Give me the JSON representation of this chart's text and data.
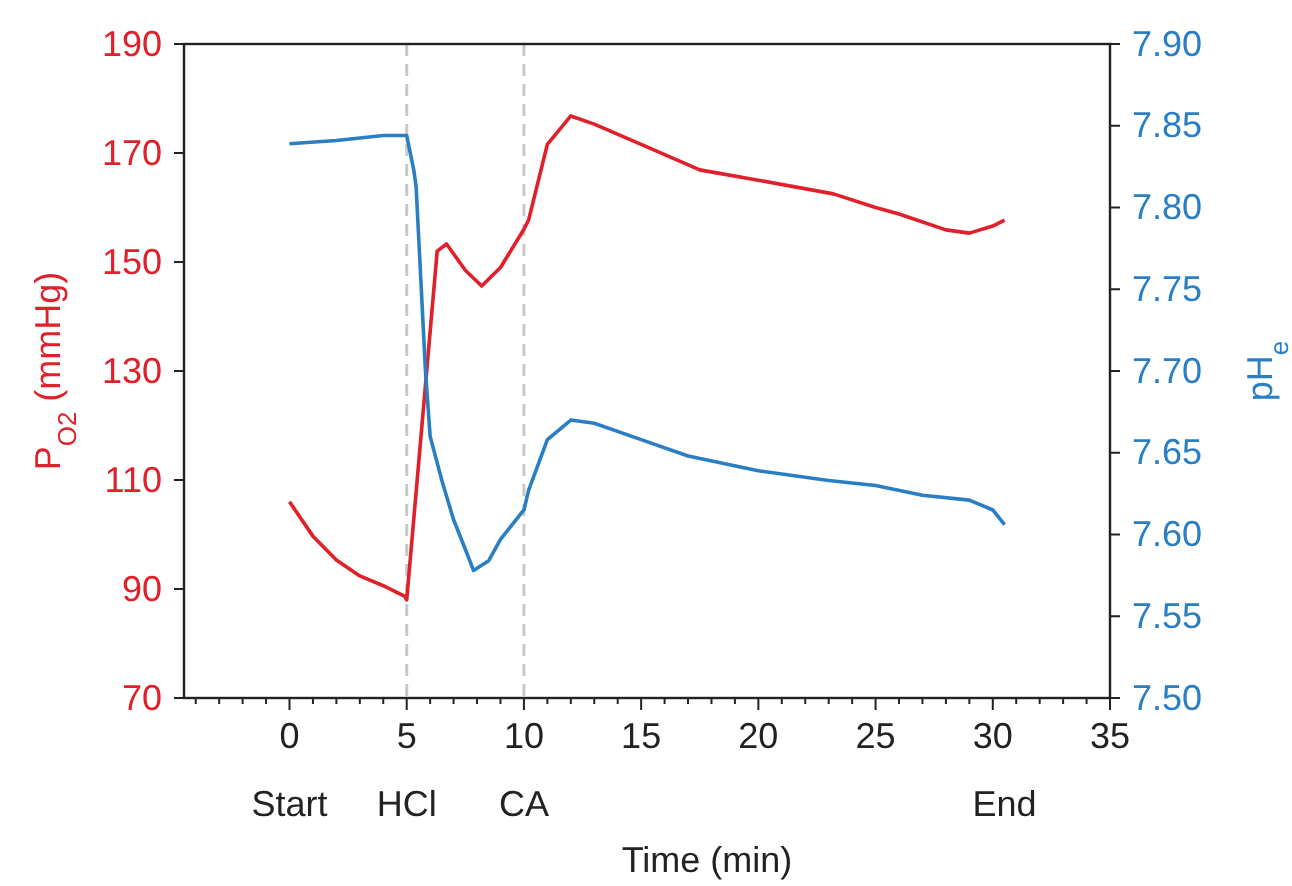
{
  "chart_data": {
    "type": "line",
    "xlabel": "Time (min)",
    "ylabel": "P$_{O2}$ (mmHg)",
    "y2label": "pH$_{e}$",
    "xlim": [
      -4.5,
      35
    ],
    "xticks": [
      {
        "value": -4,
        "label": null
      },
      {
        "value": -3,
        "label": null
      },
      {
        "value": -2,
        "label": null
      },
      {
        "value": -1,
        "label": null
      },
      0,
      {
        "value": 1,
        "label": null
      },
      {
        "value": 2,
        "label": null
      },
      {
        "value": 3,
        "label": null
      },
      {
        "value": 4,
        "label": null
      },
      5,
      {
        "value": 6,
        "label": null
      },
      {
        "value": 7,
        "label": null
      },
      {
        "value": 8,
        "label": null
      },
      {
        "value": 9,
        "label": null
      },
      10,
      {
        "value": 11,
        "label": null
      },
      {
        "value": 12,
        "label": null
      },
      {
        "value": 13,
        "label": null
      },
      {
        "value": 14,
        "label": null
      },
      15,
      {
        "value": 16,
        "label": null
      },
      {
        "value": 17,
        "label": null
      },
      {
        "value": 18,
        "label": null
      },
      {
        "value": 19,
        "label": null
      },
      20,
      {
        "value": 21,
        "label": null
      },
      {
        "value": 22,
        "label": null
      },
      {
        "value": 23,
        "label": null
      },
      {
        "value": 24,
        "label": null
      },
      25,
      {
        "value": 26,
        "label": null
      },
      {
        "value": 27,
        "label": null
      },
      {
        "value": 28,
        "label": null
      },
      {
        "value": 29,
        "label": null
      },
      30,
      {
        "value": 31,
        "label": null
      },
      {
        "value": 32,
        "label": null
      },
      {
        "value": 33,
        "label": null
      },
      {
        "value": 34,
        "label": null
      },
      35
    ],
    "ylim": [
      70,
      190
    ],
    "yticks": [
      70,
      90,
      110,
      130,
      150,
      170,
      190
    ],
    "y2lim": [
      7.5,
      7.9
    ],
    "y2ticks": [
      {
        "value": 7.5,
        "label": "7.50"
      },
      7.55,
      {
        "value": 7.6,
        "label": "7.60"
      },
      7.65,
      {
        "value": 7.7,
        "label": "7.70"
      },
      7.75,
      {
        "value": 7.8,
        "label": "7.80"
      },
      7.85,
      {
        "value": 7.9,
        "label": "7.90"
      }
    ],
    "ref_lines": [
      {
        "axis": "x",
        "value": 5,
        "label": "HCl",
        "color": "#c8c8c8",
        "line_style": "dashed"
      },
      {
        "axis": "x",
        "value": 10,
        "label": "CA",
        "color": "#c8c8c8",
        "line_style": "dashed"
      }
    ],
    "annotations": [
      "Start",
      "End"
    ],
    "grid": false,
    "series": [
      {
        "color": "#e0202a",
        "x": [
          0,
          1,
          2,
          3,
          4,
          4.9,
          5,
          6.3,
          6.7,
          7.5,
          8.2,
          9,
          10,
          10.2,
          11,
          12,
          13,
          15,
          17.5,
          20,
          23.2,
          25,
          26,
          28,
          29,
          30,
          30.5
        ],
        "values": [
          106,
          99.7,
          95.3,
          92.4,
          90.6,
          88.7,
          88,
          152,
          153.3,
          148.5,
          145.6,
          149,
          156,
          157.7,
          171.6,
          176.8,
          175.3,
          171.6,
          166.9,
          165,
          162.5,
          160,
          158.8,
          155.9,
          155.3,
          156.6,
          157.7
        ]
      },
      {
        "color": "#2a7fc4",
        "axis": "y2",
        "x": [
          0,
          2,
          4,
          5,
          5.3,
          5.4,
          5.8,
          6,
          6.5,
          7,
          7.5,
          7.85,
          8.5,
          9,
          9.5,
          10,
          10.2,
          11,
          12,
          13,
          15,
          17,
          20,
          23,
          25,
          27,
          29,
          30,
          30.5
        ],
        "values": [
          7.839,
          7.841,
          7.844,
          7.844,
          7.823,
          7.813,
          7.7,
          7.66,
          7.633,
          7.609,
          7.591,
          7.578,
          7.584,
          7.597,
          7.606,
          7.615,
          7.627,
          7.658,
          7.67,
          7.668,
          7.658,
          7.648,
          7.639,
          7.633,
          7.63,
          7.624,
          7.621,
          7.615,
          7.606
        ]
      }
    ]
  }
}
